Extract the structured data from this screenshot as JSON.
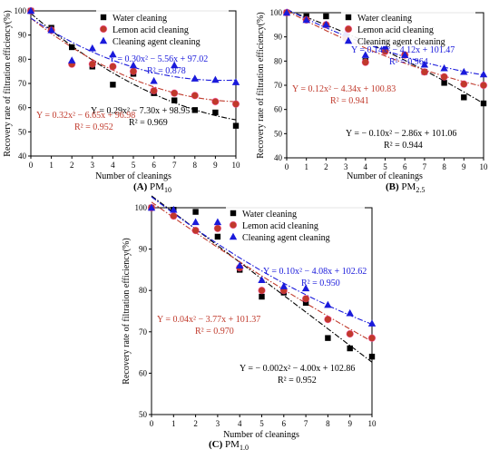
{
  "chart_data": [
    {
      "type": "scatter",
      "caption": "(A) PM10",
      "caption_letter": "(A)",
      "caption_base": "PM",
      "caption_sub": "10",
      "xlabel": "Number of cleanings",
      "ylabel": "Recovery rate of filtration efficiency(%)",
      "xlim": [
        0,
        10
      ],
      "ylim": [
        40,
        100
      ],
      "xticks": [
        0,
        1,
        2,
        3,
        4,
        5,
        6,
        7,
        8,
        9,
        10
      ],
      "yticks": [
        40,
        50,
        60,
        70,
        80,
        90,
        100
      ],
      "legend_position": "top-center",
      "series": [
        {
          "name": "Water cleaning",
          "marker": "square",
          "color": "#000000",
          "x": [
            0,
            1,
            2,
            3,
            4,
            5,
            6,
            7,
            8,
            9,
            10
          ],
          "y": [
            100,
            93,
            85,
            77,
            69.5,
            74,
            66,
            63,
            59,
            58,
            52.5
          ],
          "fit": {
            "a": 0.29,
            "b": -7.3,
            "c": 98.95
          },
          "equation": "Y = 0.29x² − 7.30x + 98.95",
          "r2": "R² = 0.969"
        },
        {
          "name": "Lemon acid cleaning",
          "marker": "circle",
          "color": "#c0392b",
          "x": [
            0,
            1,
            2,
            3,
            4,
            5,
            6,
            7,
            8,
            9,
            10
          ],
          "y": [
            100,
            92,
            78,
            78,
            77,
            75,
            67,
            66,
            65,
            62.5,
            61.5
          ],
          "fit": {
            "a": 0.32,
            "b": -6.65,
            "c": 96.98
          },
          "equation": "Y = 0.32x² − 6.65x + 96.98",
          "r2": "R² = 0.952"
        },
        {
          "name": "Cleaning agent cleaning",
          "marker": "triangle",
          "color": "#1a1adb",
          "x": [
            0,
            1,
            2,
            3,
            4,
            5,
            6,
            7,
            8,
            9,
            10
          ],
          "y": [
            100,
            92,
            79.5,
            84.5,
            82,
            77.5,
            71,
            77.5,
            72,
            71.5,
            70.5
          ],
          "fit": {
            "a": 0.3,
            "b": -5.56,
            "c": 97.02
          },
          "equation": "Y = 0.30x² − 5.56x + 97.02",
          "r2": "R² = 0.878"
        }
      ]
    },
    {
      "type": "scatter",
      "caption": "(B) PM2.5",
      "caption_letter": "(B)",
      "caption_base": "PM",
      "caption_sub": "2.5",
      "xlabel": "Number of cleanings",
      "ylabel": "Recovery rate of filtration efficiency(%)",
      "xlim": [
        0,
        10
      ],
      "ylim": [
        40,
        100
      ],
      "xticks": [
        0,
        1,
        2,
        3,
        4,
        5,
        6,
        7,
        8,
        9,
        10
      ],
      "yticks": [
        40,
        50,
        60,
        70,
        80,
        90,
        100
      ],
      "legend_position": "top-center",
      "series": [
        {
          "name": "Water cleaning",
          "marker": "square",
          "color": "#000000",
          "x": [
            0,
            1,
            2,
            3,
            4,
            5,
            6,
            7,
            8,
            9,
            10
          ],
          "y": [
            100,
            98.5,
            98.5,
            90,
            80,
            88,
            82.5,
            75.5,
            71,
            65,
            62.5
          ],
          "fit": {
            "a": -0.1,
            "b": -2.86,
            "c": 101.06
          },
          "equation": "Y = − 0.10x² − 2.86x + 101.06",
          "r2": "R² = 0.944"
        },
        {
          "name": "Lemon acid cleaning",
          "marker": "circle",
          "color": "#c0392b",
          "x": [
            0,
            1,
            2,
            3,
            4,
            5,
            6,
            7,
            8,
            9,
            10
          ],
          "y": [
            100,
            97,
            95,
            89.5,
            79.5,
            84,
            82.5,
            75.5,
            73.5,
            70.5,
            70
          ],
          "fit": {
            "a": 0.12,
            "b": -4.34,
            "c": 100.83
          },
          "equation": "Y = 0.12x² − 4.34x + 100.83",
          "r2": "R² = 0.941"
        },
        {
          "name": "Cleaning agent cleaning",
          "marker": "triangle",
          "color": "#1a1adb",
          "x": [
            0,
            1,
            2,
            3,
            4,
            5,
            6,
            7,
            8,
            9,
            10
          ],
          "y": [
            100,
            97,
            95,
            91.5,
            82.5,
            86,
            82.5,
            78.5,
            77,
            75.5,
            74.5
          ],
          "fit": {
            "a": 0.14,
            "b": -4.12,
            "c": 101.47
          },
          "equation": "Y = 0.14x² − 4.12x + 101.47",
          "r2": "R² = 0.964"
        }
      ]
    },
    {
      "type": "scatter",
      "caption": "(C) PM1.0",
      "caption_letter": "(C)",
      "caption_base": "PM",
      "caption_sub": "1.0",
      "xlabel": "Number of cleanings",
      "ylabel": "Recovery rate of filtration efficiency(%)",
      "xlim": [
        0,
        10
      ],
      "ylim": [
        50,
        100
      ],
      "xticks": [
        0,
        1,
        2,
        3,
        4,
        5,
        6,
        7,
        8,
        9,
        10
      ],
      "yticks": [
        50,
        60,
        70,
        80,
        90,
        100
      ],
      "legend_position": "top-right",
      "series": [
        {
          "name": "Water cleaning",
          "marker": "square",
          "color": "#000000",
          "x": [
            0,
            1,
            2,
            3,
            4,
            5,
            6,
            7,
            8,
            9,
            10
          ],
          "y": [
            100,
            99.5,
            99,
            93,
            85,
            78.5,
            79.5,
            77,
            68.5,
            66,
            64
          ],
          "fit": {
            "a": -0.002,
            "b": -4.0,
            "c": 102.86
          },
          "equation": "Y = − 0.002x² − 4.00x + 102.86",
          "r2": "R² = 0.952"
        },
        {
          "name": "Lemon acid cleaning",
          "marker": "circle",
          "color": "#c0392b",
          "x": [
            0,
            1,
            2,
            3,
            4,
            5,
            6,
            7,
            8,
            9,
            10
          ],
          "y": [
            100,
            98,
            94.5,
            95,
            85.5,
            80,
            80,
            78,
            73,
            69.5,
            68.5
          ],
          "fit": {
            "a": 0.04,
            "b": -3.77,
            "c": 101.37
          },
          "equation": "Y = 0.04x² − 3.77x + 101.37",
          "r2": "R² = 0.970"
        },
        {
          "name": "Cleaning agent cleaning",
          "marker": "triangle",
          "color": "#1a1adb",
          "x": [
            0,
            1,
            2,
            3,
            4,
            5,
            6,
            7,
            8,
            9,
            10
          ],
          "y": [
            100,
            99.5,
            96.5,
            96.5,
            86,
            82.5,
            81,
            80.5,
            76.5,
            74.5,
            72
          ],
          "fit": {
            "a": 0.1,
            "b": -4.08,
            "c": 102.62
          },
          "equation": "Y = 0.10x² − 4.08x + 102.62",
          "r2": "R² = 0.950"
        }
      ]
    }
  ]
}
